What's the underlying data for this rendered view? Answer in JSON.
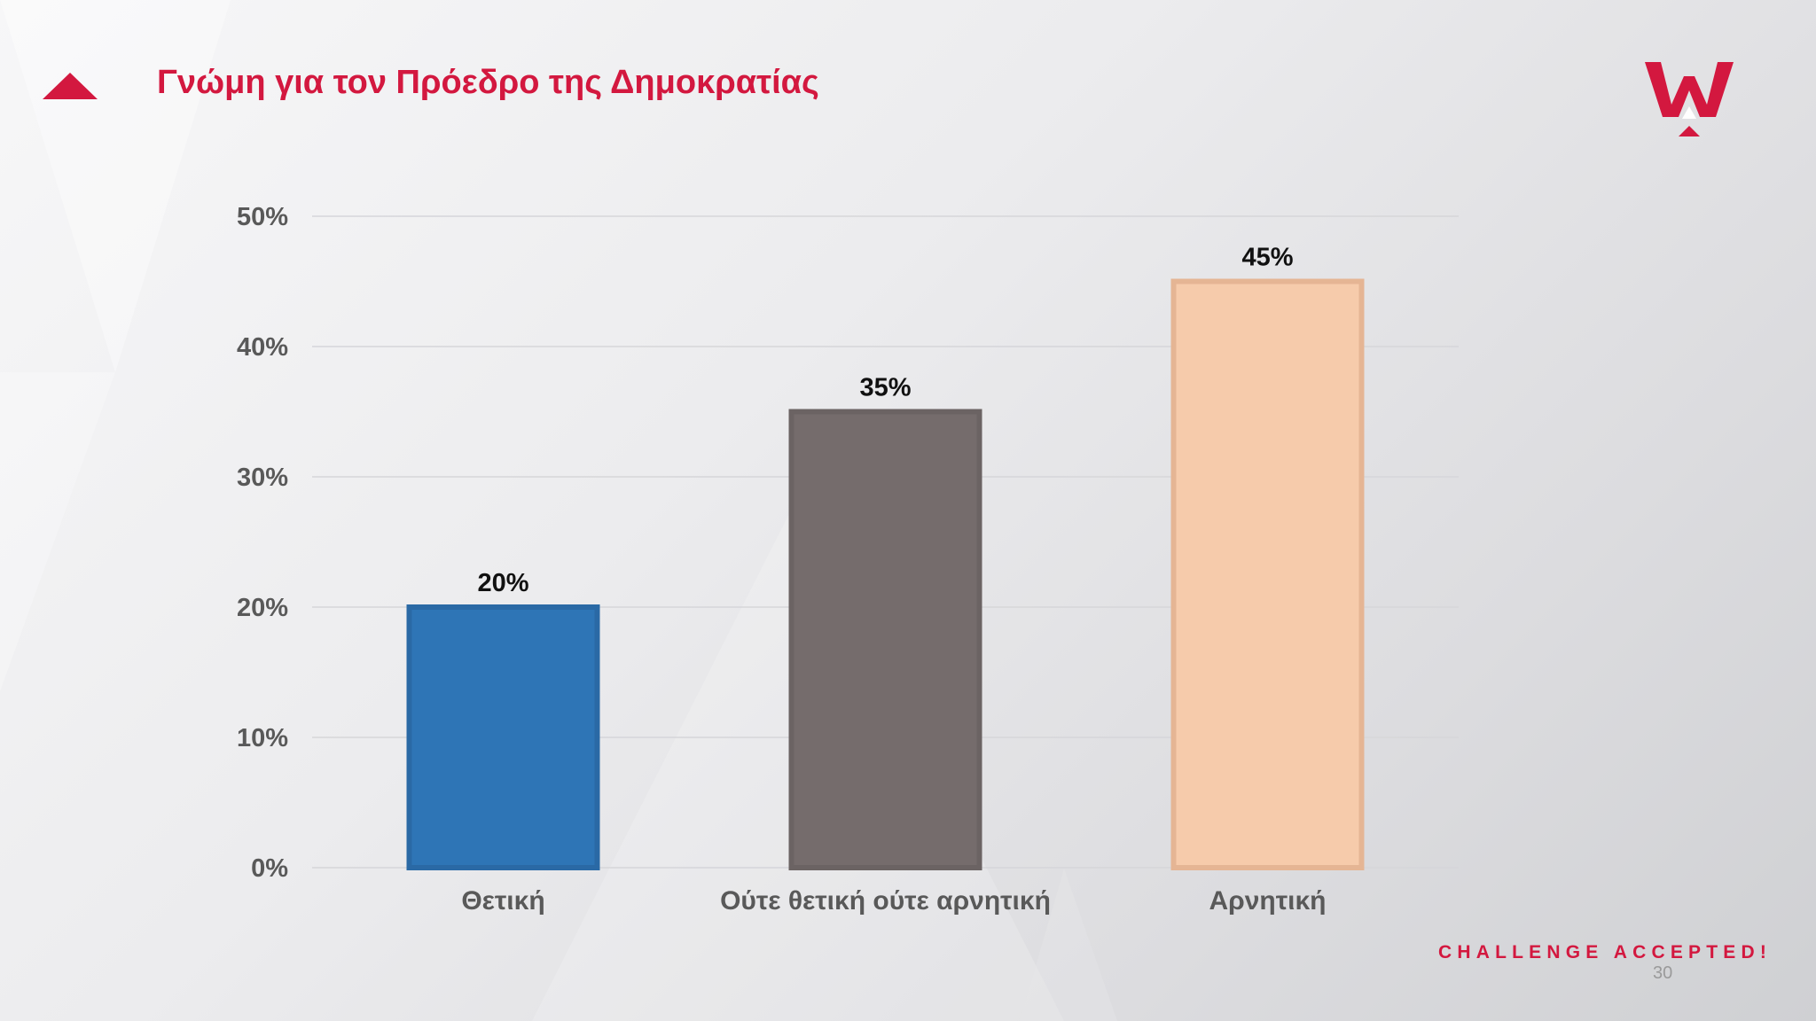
{
  "slide": {
    "title": "Γνώμη για τον Πρόεδρο της Δημοκρατίας",
    "footer_tagline": "CHALLENGE ACCEPTED!",
    "page_number": "30",
    "logo_icon": "w-crown-logo-icon",
    "accent_color": "#d3183f"
  },
  "chart_data": {
    "type": "bar",
    "categories": [
      "Θετική",
      "Ούτε θετική ούτε αρνητική",
      "Αρνητική"
    ],
    "values": [
      20,
      35,
      45
    ],
    "value_labels": [
      "20%",
      "35%",
      "45%"
    ],
    "colors": [
      "#2e75b6",
      "#756c6c",
      "#f6cbab"
    ],
    "border_colors": [
      "#2a69a5",
      "#6b6363",
      "#e5b594"
    ],
    "ylim": [
      0,
      50
    ],
    "yticks": [
      "0%",
      "10%",
      "20%",
      "30%",
      "40%",
      "50%"
    ],
    "grid": true,
    "legend": "none"
  }
}
